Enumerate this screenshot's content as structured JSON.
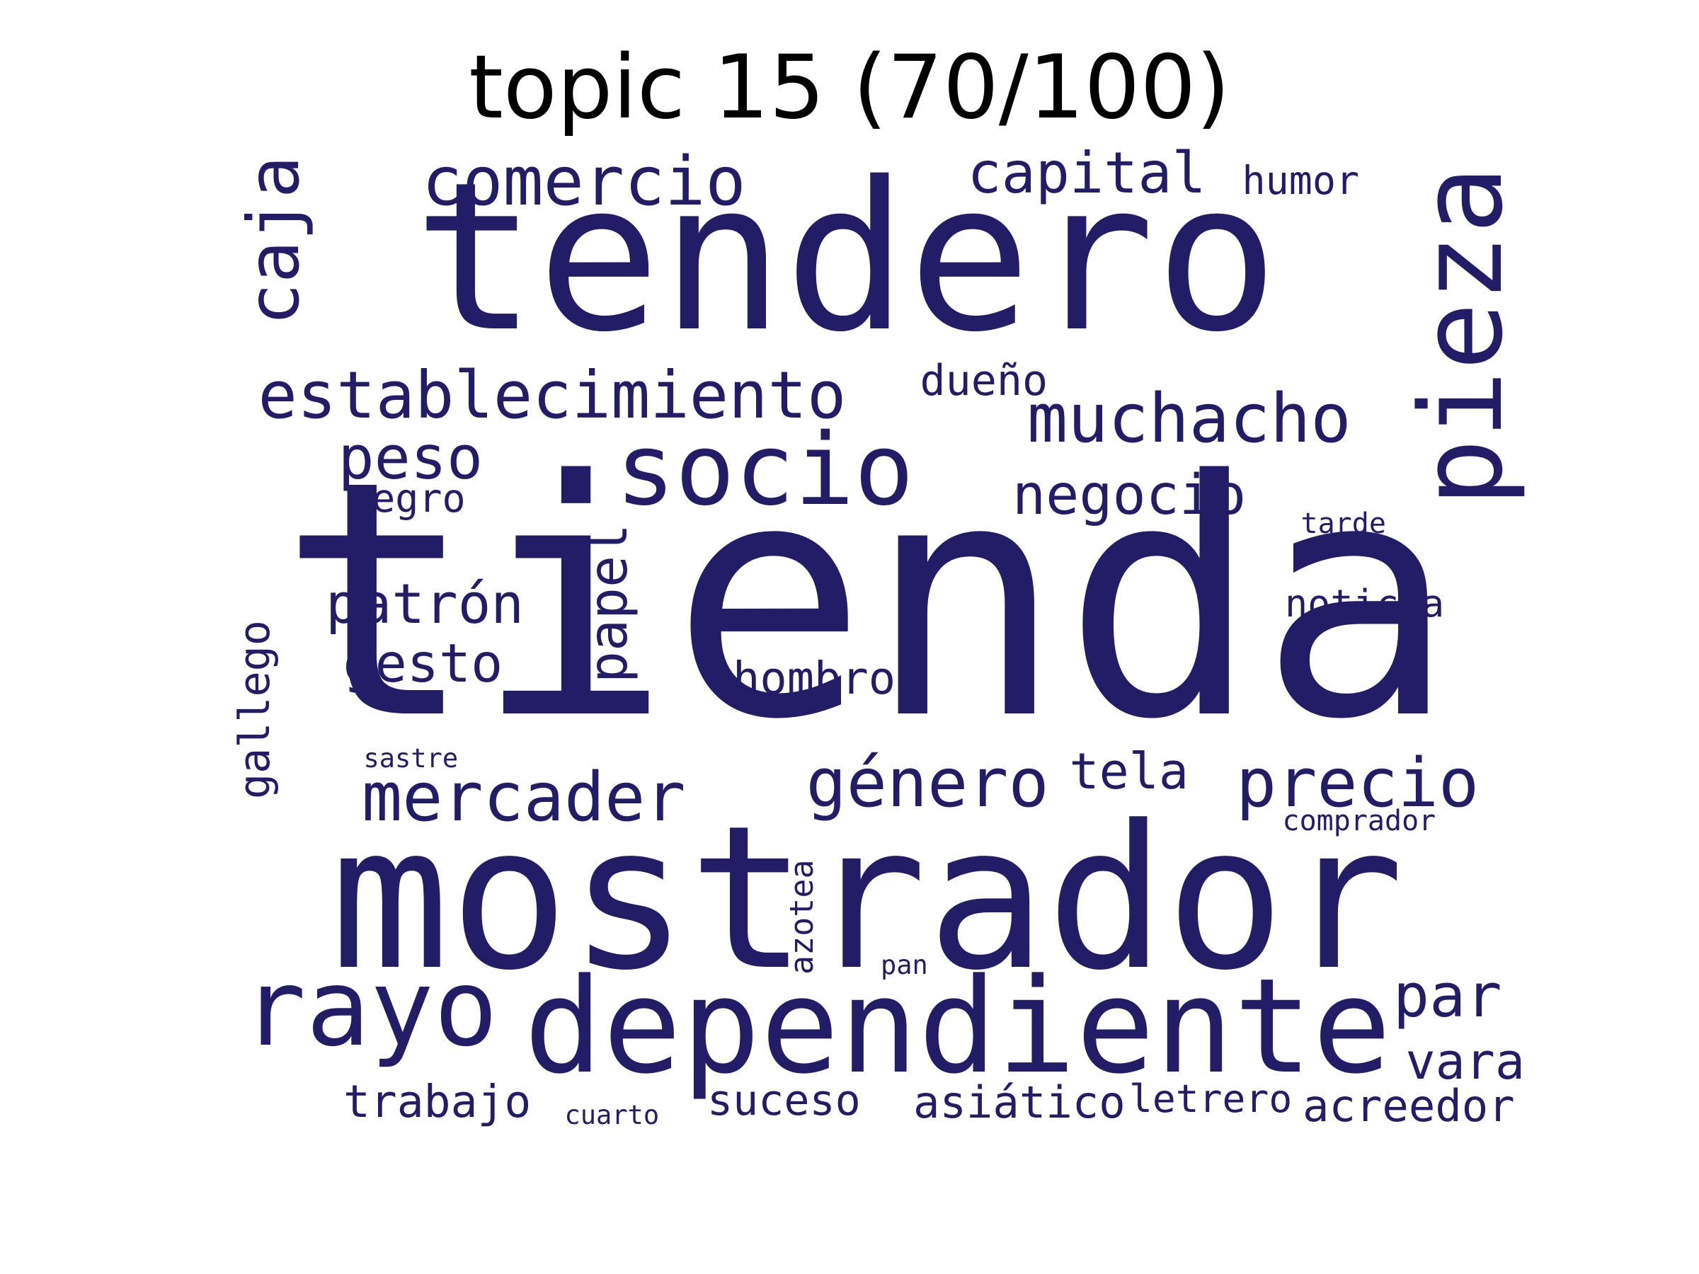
{
  "title": "topic 15 (70/100)",
  "colors": {
    "word": "#221d66",
    "background": "#ffffff",
    "title": "#000000"
  },
  "words": [
    "tienda",
    "mostrador",
    "tendero",
    "dependiente",
    "socio",
    "rayo",
    "pieza",
    "establecimiento",
    "comercio",
    "muchacho",
    "precio",
    "mercader",
    "género",
    "peso",
    "capital",
    "caja",
    "negocio",
    "patrón",
    "par",
    "gesto",
    "papel",
    "hombro",
    "vara",
    "tela",
    "acreedor",
    "trabajo",
    "asiático",
    "humor",
    "dueño",
    "suceso",
    "letrero",
    "negro",
    "azotea",
    "gallego",
    "noticia",
    "comprador",
    "cuarto",
    "sastre",
    "tarde",
    "pan"
  ]
}
